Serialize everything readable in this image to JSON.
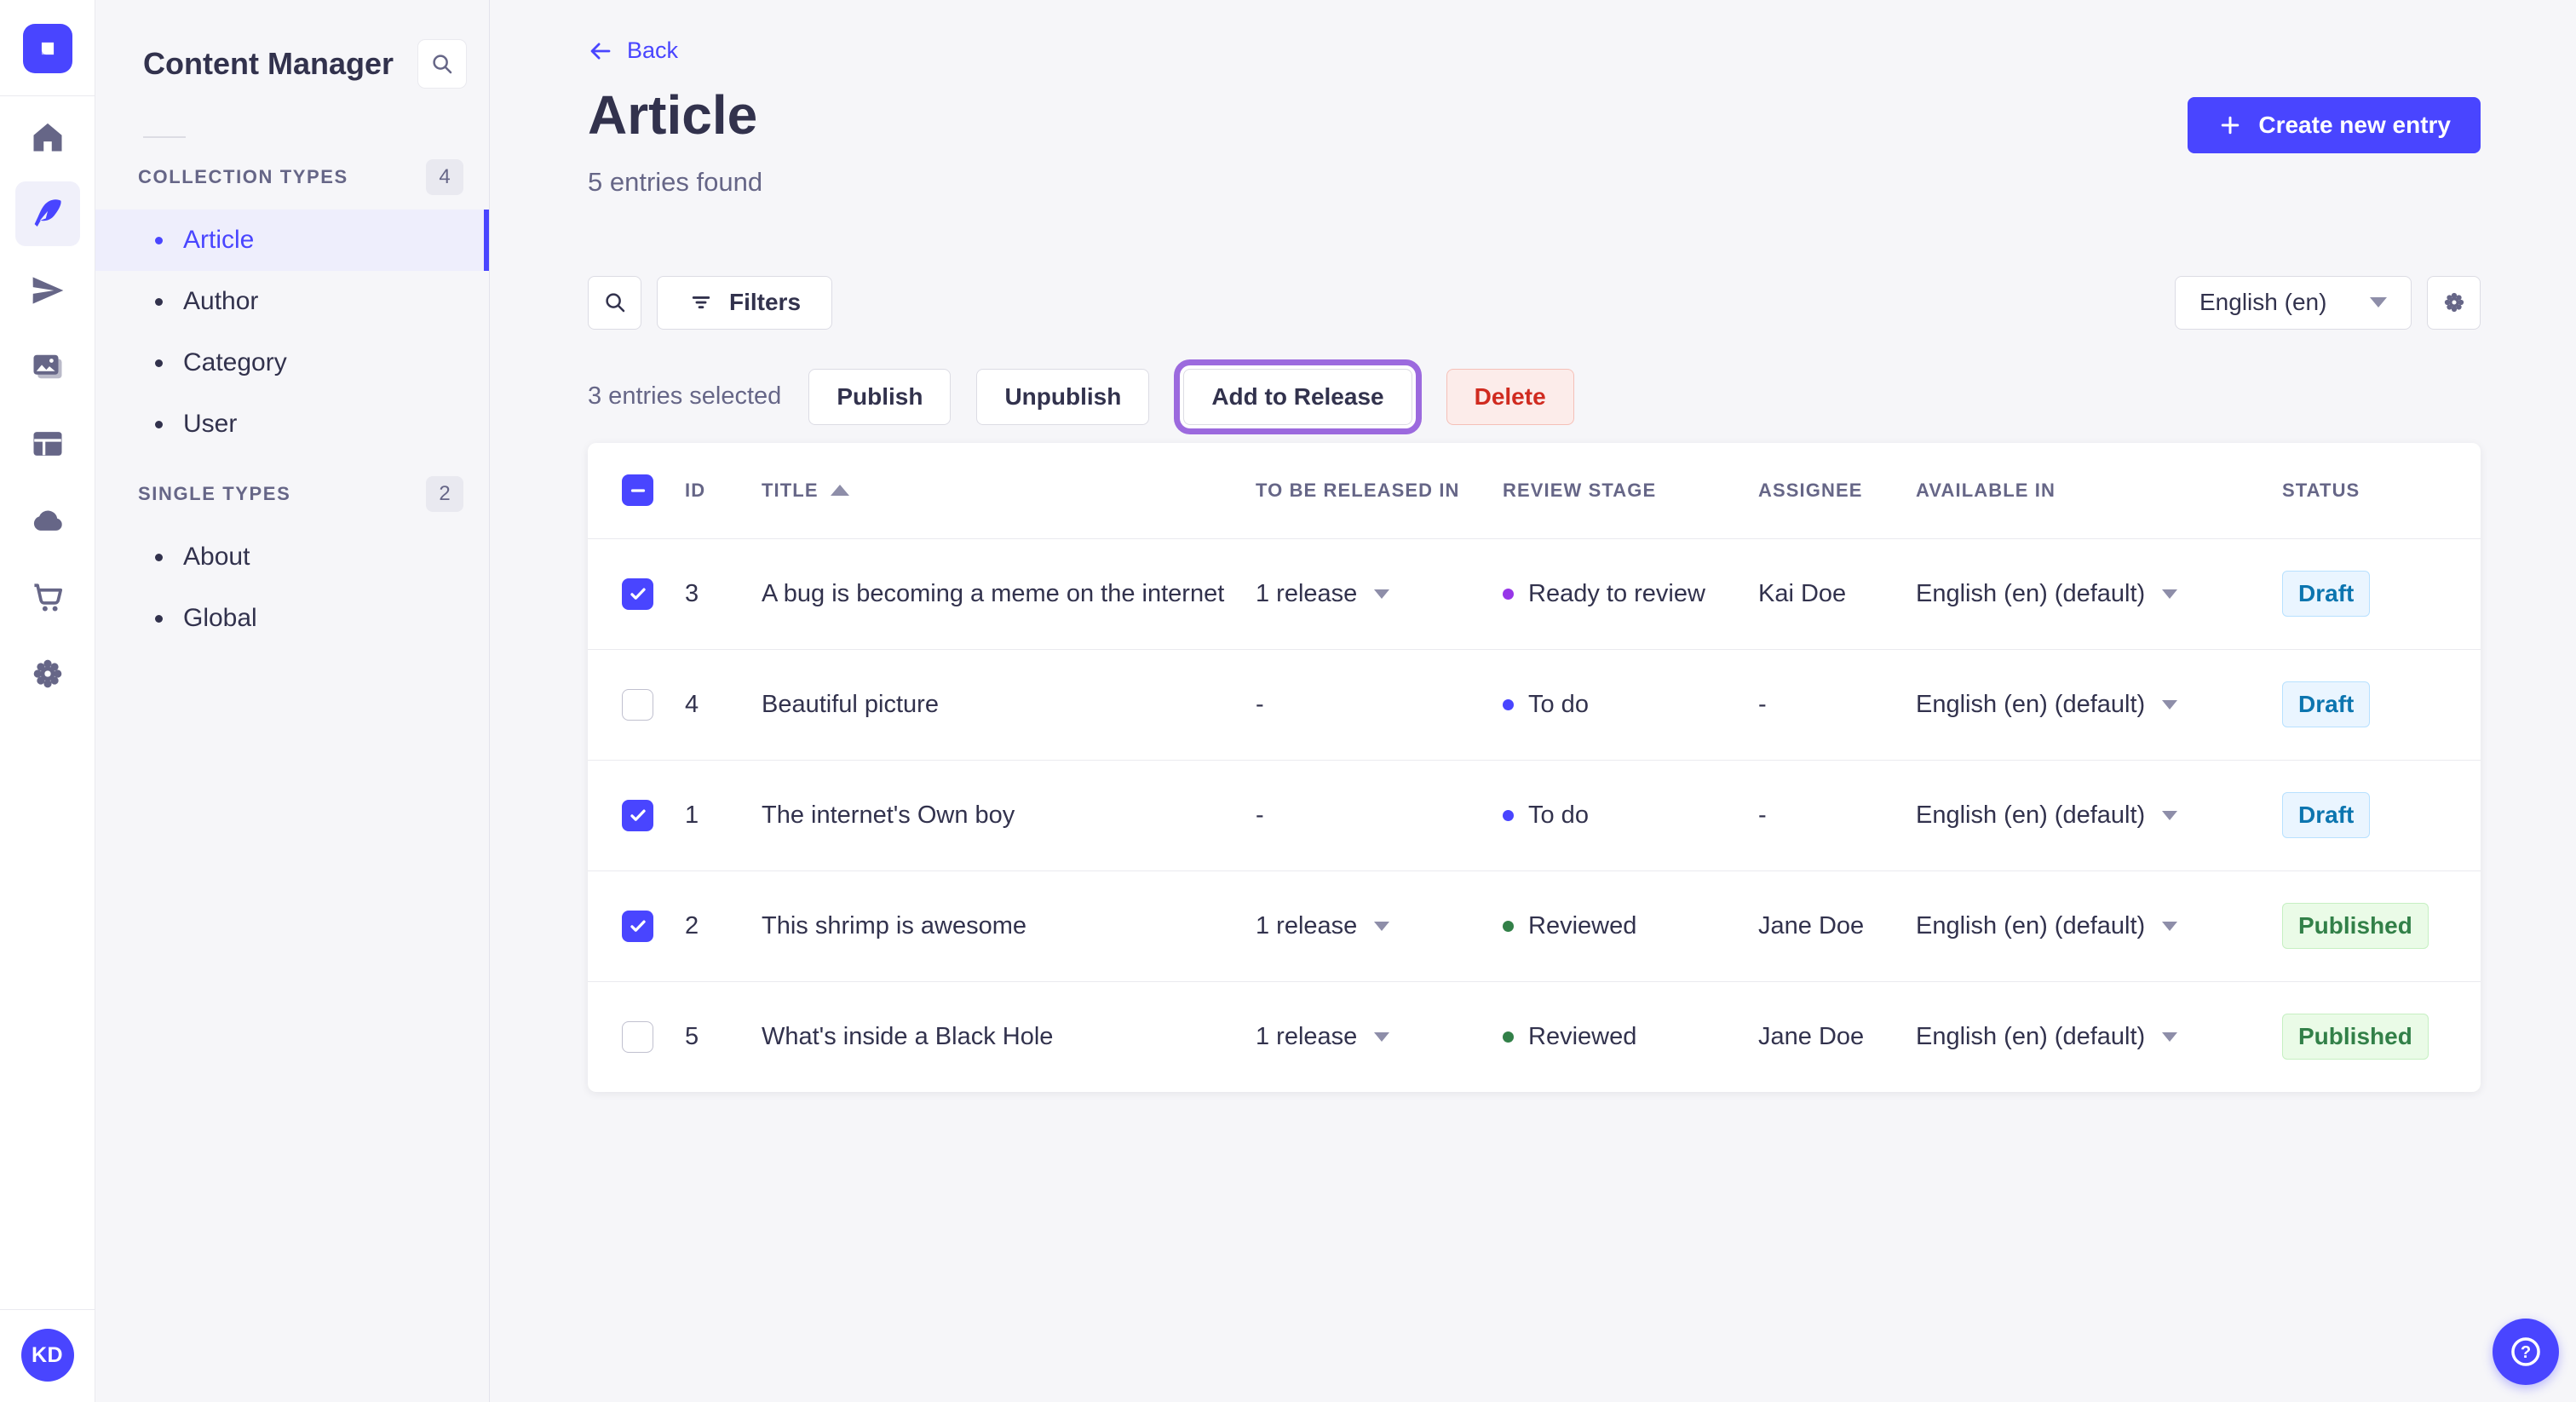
{
  "rail": {
    "items": [
      {
        "icon": "home"
      },
      {
        "icon": "feather",
        "active": true
      },
      {
        "icon": "paper-plane"
      },
      {
        "icon": "images"
      },
      {
        "icon": "layout"
      },
      {
        "icon": "cloud"
      },
      {
        "icon": "cart"
      },
      {
        "icon": "gear"
      }
    ],
    "avatar_initials": "KD"
  },
  "subnav": {
    "title": "Content Manager",
    "sections": [
      {
        "label": "COLLECTION TYPES",
        "count": "4",
        "items": [
          {
            "label": "Article",
            "active": true
          },
          {
            "label": "Author"
          },
          {
            "label": "Category"
          },
          {
            "label": "User"
          }
        ]
      },
      {
        "label": "SINGLE TYPES",
        "count": "2",
        "items": [
          {
            "label": "About"
          },
          {
            "label": "Global"
          }
        ]
      }
    ]
  },
  "header": {
    "back_label": "Back",
    "title": "Article",
    "subtitle": "5 entries found",
    "create_button_label": "Create new entry"
  },
  "toolbar": {
    "filters_label": "Filters",
    "locale_value": "English (en)"
  },
  "selection": {
    "count_label": "3 entries selected",
    "publish_label": "Publish",
    "unpublish_label": "Unpublish",
    "add_to_release_label": "Add to Release",
    "delete_label": "Delete"
  },
  "table": {
    "headers": {
      "id": "ID",
      "title": "TITLE",
      "release": "TO BE RELEASED IN",
      "stage": "REVIEW STAGE",
      "assignee": "ASSIGNEE",
      "available": "AVAILABLE IN",
      "status": "STATUS"
    },
    "sorted_by": "TITLE",
    "sort_direction": "asc",
    "rows": [
      {
        "checked": true,
        "id": "3",
        "title": "A bug is becoming a meme on the internet",
        "to_be_released_in": "1 release",
        "review_stage": "Ready to review",
        "stage_key": "ready",
        "assignee": "Kai Doe",
        "available_in": "English (en) (default)",
        "status": "Draft"
      },
      {
        "checked": false,
        "id": "4",
        "title": "Beautiful picture",
        "to_be_released_in": "-",
        "review_stage": "To do",
        "stage_key": "todo",
        "assignee": "-",
        "available_in": "English (en) (default)",
        "status": "Draft"
      },
      {
        "checked": true,
        "id": "1",
        "title": "The internet's Own boy",
        "to_be_released_in": "-",
        "review_stage": "To do",
        "stage_key": "todo",
        "assignee": "-",
        "available_in": "English (en) (default)",
        "status": "Draft"
      },
      {
        "checked": true,
        "id": "2",
        "title": "This shrimp is awesome",
        "to_be_released_in": "1 release",
        "review_stage": "Reviewed",
        "stage_key": "reviewed",
        "assignee": "Jane Doe",
        "available_in": "English (en) (default)",
        "status": "Published"
      },
      {
        "checked": false,
        "id": "5",
        "title": "What's inside a Black Hole",
        "to_be_released_in": "1 release",
        "review_stage": "Reviewed",
        "stage_key": "reviewed",
        "assignee": "Jane Doe",
        "available_in": "English (en) (default)",
        "status": "Published"
      }
    ]
  },
  "colors": {
    "primary": "#4945ff",
    "stage": {
      "todo": "#4945ff",
      "ready": "#9736e8",
      "reviewed": "#328048"
    },
    "draft": {
      "bg": "#eaf5ff",
      "border": "#b8e1ff",
      "text": "#0c75af"
    },
    "published": {
      "bg": "#eafbe7",
      "border": "#c6f0c2",
      "text": "#328048"
    },
    "delete": {
      "bg": "#fcecea",
      "border": "#f5c0b8",
      "text": "#d02b20"
    },
    "release_ring": "#9c6ade"
  }
}
